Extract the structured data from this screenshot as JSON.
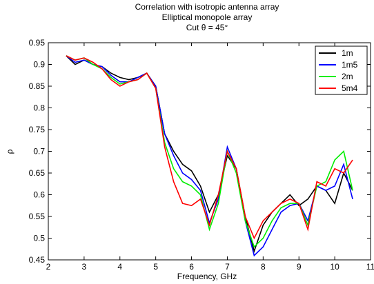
{
  "chart_data": {
    "type": "line",
    "title": "Correlation with isotropic antenna array",
    "subtitle": "Elliptical monopole array",
    "annotation": "Cut θ = 45°",
    "x_label": "Frequency, GHz",
    "y_label": "ρ",
    "x": [
      2.5,
      2.75,
      3.0,
      3.25,
      3.5,
      3.75,
      4.0,
      4.25,
      4.5,
      4.75,
      5.0,
      5.25,
      5.5,
      5.75,
      6.0,
      6.25,
      6.5,
      6.75,
      7.0,
      7.25,
      7.5,
      7.75,
      8.0,
      8.25,
      8.5,
      8.75,
      9.0,
      9.25,
      9.5,
      9.75,
      10.0,
      10.25,
      10.5
    ],
    "series": [
      {
        "name": "1m",
        "color": "#000000",
        "values": [
          0.92,
          0.9,
          0.91,
          0.9,
          0.895,
          0.88,
          0.87,
          0.865,
          0.87,
          0.88,
          0.85,
          0.74,
          0.7,
          0.67,
          0.655,
          0.62,
          0.56,
          0.6,
          0.69,
          0.66,
          0.55,
          0.47,
          0.53,
          0.56,
          0.58,
          0.6,
          0.575,
          0.59,
          0.62,
          0.61,
          0.58,
          0.65,
          0.61
        ]
      },
      {
        "name": "1m5",
        "color": "#0000ff",
        "values": [
          0.92,
          0.905,
          0.91,
          0.9,
          0.895,
          0.875,
          0.86,
          0.86,
          0.87,
          0.88,
          0.85,
          0.74,
          0.69,
          0.65,
          0.635,
          0.61,
          0.535,
          0.59,
          0.71,
          0.66,
          0.54,
          0.46,
          0.48,
          0.52,
          0.56,
          0.575,
          0.58,
          0.54,
          0.62,
          0.61,
          0.62,
          0.67,
          0.59
        ]
      },
      {
        "name": "2m",
        "color": "#00ee00",
        "values": [
          0.92,
          0.91,
          0.915,
          0.9,
          0.89,
          0.87,
          0.855,
          0.86,
          0.865,
          0.88,
          0.845,
          0.72,
          0.66,
          0.63,
          0.62,
          0.6,
          0.52,
          0.58,
          0.7,
          0.65,
          0.54,
          0.48,
          0.5,
          0.54,
          0.57,
          0.58,
          0.58,
          0.53,
          0.62,
          0.63,
          0.68,
          0.7,
          0.61
        ]
      },
      {
        "name": "5m4",
        "color": "#ff0000",
        "values": [
          0.92,
          0.91,
          0.915,
          0.905,
          0.89,
          0.865,
          0.85,
          0.86,
          0.865,
          0.88,
          0.845,
          0.71,
          0.63,
          0.58,
          0.575,
          0.59,
          0.53,
          0.6,
          0.7,
          0.66,
          0.55,
          0.5,
          0.54,
          0.56,
          0.58,
          0.59,
          0.58,
          0.52,
          0.63,
          0.62,
          0.66,
          0.65,
          0.68
        ]
      }
    ],
    "xlim": [
      2,
      11
    ],
    "xticks": [
      2,
      3,
      4,
      5,
      6,
      7,
      8,
      9,
      10,
      11
    ],
    "ylim": [
      0.45,
      0.95
    ],
    "yticks": [
      0.45,
      0.5,
      0.55,
      0.6,
      0.65,
      0.7,
      0.75,
      0.8,
      0.85,
      0.9,
      0.95
    ],
    "legend": "upper-right"
  }
}
